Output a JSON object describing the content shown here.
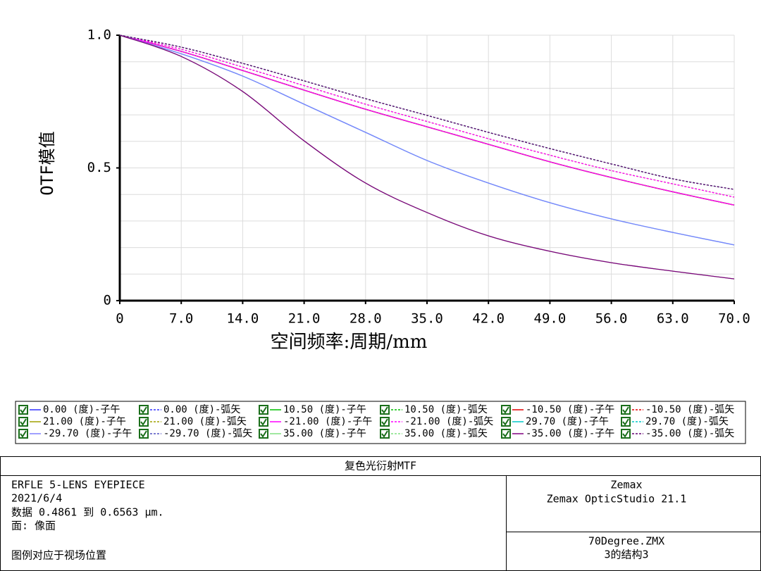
{
  "chart_data": {
    "type": "line",
    "x_label": "空间频率:周期/mm",
    "y_label": "OTF模值",
    "x": [
      0,
      7,
      14,
      21,
      28,
      35,
      42,
      49,
      56,
      63,
      70
    ],
    "xlim": [
      0,
      70
    ],
    "xticks": [
      0,
      {
        "value": 7,
        "label": "7.0"
      },
      {
        "value": 14,
        "label": "14.0"
      },
      {
        "value": 21,
        "label": "21.0"
      },
      {
        "value": 28,
        "label": "28.0"
      },
      {
        "value": 35,
        "label": "35.0"
      },
      {
        "value": 42,
        "label": "42.0"
      },
      {
        "value": 49,
        "label": "49.0"
      },
      {
        "value": 56,
        "label": "56.0"
      },
      {
        "value": 63,
        "label": "63.0"
      },
      {
        "value": 70,
        "label": "70.0"
      }
    ],
    "ylim": [
      0,
      1
    ],
    "yticks": [
      0,
      0.5,
      {
        "value": 1,
        "label": "1.0"
      }
    ],
    "y_minor_ticks": [
      0.1,
      0.2,
      0.3,
      0.4,
      0.6,
      0.7,
      0.8,
      0.9
    ],
    "grid": true,
    "series": [
      {
        "name": "0.00 (度)-子午",
        "color": "#3030ff",
        "style": "solid",
        "values": [
          1,
          0.939,
          0.867,
          0.793,
          0.721,
          0.655,
          0.589,
          0.523,
          0.464,
          0.41,
          0.36
        ]
      },
      {
        "name": "0.00 (度)-弧矢",
        "color": "#3030ff",
        "style": "dashed",
        "values": [
          1,
          0.939,
          0.867,
          0.793,
          0.721,
          0.655,
          0.589,
          0.523,
          0.464,
          0.41,
          0.36
        ]
      },
      {
        "name": "10.50 (度)-子午",
        "color": "#00c000",
        "style": "solid",
        "values": [
          1,
          0.939,
          0.867,
          0.793,
          0.721,
          0.655,
          0.589,
          0.523,
          0.464,
          0.41,
          0.36
        ]
      },
      {
        "name": "10.50 (度)-弧矢",
        "color": "#00c000",
        "style": "dashed",
        "values": [
          1,
          0.939,
          0.867,
          0.793,
          0.721,
          0.655,
          0.589,
          0.523,
          0.464,
          0.41,
          0.36
        ]
      },
      {
        "name": "-10.50 (度)-子午",
        "color": "#e00000",
        "style": "solid",
        "values": [
          1,
          0.939,
          0.867,
          0.793,
          0.721,
          0.655,
          0.589,
          0.523,
          0.464,
          0.41,
          0.36
        ]
      },
      {
        "name": "-10.50 (度)-弧矢",
        "color": "#e00000",
        "style": "dashed",
        "values": [
          1,
          0.939,
          0.867,
          0.793,
          0.721,
          0.655,
          0.589,
          0.523,
          0.464,
          0.41,
          0.36
        ]
      },
      {
        "name": "21.00 (度)-子午",
        "color": "#a0a000",
        "style": "solid",
        "values": [
          1,
          0.939,
          0.867,
          0.793,
          0.721,
          0.655,
          0.589,
          0.523,
          0.464,
          0.41,
          0.36
        ]
      },
      {
        "name": "21.00 (度)-弧矢",
        "color": "#a0a000",
        "style": "dashed",
        "values": [
          1,
          0.947,
          0.88,
          0.81,
          0.74,
          0.675,
          0.61,
          0.548,
          0.49,
          0.44,
          0.39
        ]
      },
      {
        "name": "-21.00 (度)-子午",
        "color": "#ff00ff",
        "style": "solid",
        "values": [
          1,
          0.939,
          0.867,
          0.793,
          0.721,
          0.655,
          0.589,
          0.523,
          0.464,
          0.41,
          0.36
        ]
      },
      {
        "name": "-21.00 (度)-弧矢",
        "color": "#ff00ff",
        "style": "dashed",
        "values": [
          1,
          0.947,
          0.88,
          0.81,
          0.74,
          0.675,
          0.61,
          0.548,
          0.49,
          0.44,
          0.39
        ]
      },
      {
        "name": "29.70 (度)-子午",
        "color": "#00c8c8",
        "style": "solid",
        "values": [
          1,
          0.93,
          0.846,
          0.74,
          0.634,
          0.528,
          0.443,
          0.369,
          0.308,
          0.257,
          0.21
        ]
      },
      {
        "name": "29.70 (度)-弧矢",
        "color": "#00c8c8",
        "style": "dashed",
        "values": [
          1,
          0.955,
          0.894,
          0.828,
          0.761,
          0.698,
          0.634,
          0.573,
          0.515,
          0.459,
          0.419
        ]
      },
      {
        "name": "-29.70 (度)-子午",
        "color": "#8080ff",
        "style": "solid",
        "values": [
          1,
          0.93,
          0.846,
          0.74,
          0.634,
          0.528,
          0.443,
          0.369,
          0.308,
          0.257,
          0.21
        ]
      },
      {
        "name": "-29.70 (度)-弧矢",
        "color": "#5050c0",
        "style": "dashed",
        "values": [
          1,
          0.955,
          0.894,
          0.828,
          0.761,
          0.698,
          0.634,
          0.573,
          0.515,
          0.459,
          0.419
        ]
      },
      {
        "name": "35.00 (度)-子午",
        "color": "#80e080",
        "style": "solid",
        "values": [
          1,
          0.92,
          0.788,
          0.602,
          0.443,
          0.332,
          0.244,
          0.186,
          0.143,
          0.111,
          0.082
        ]
      },
      {
        "name": "35.00 (度)-弧矢",
        "color": "#80e080",
        "style": "dashed",
        "values": [
          1,
          0.955,
          0.894,
          0.828,
          0.761,
          0.698,
          0.634,
          0.573,
          0.515,
          0.459,
          0.419
        ]
      },
      {
        "name": "-35.00 (度)-子午",
        "color": "#800080",
        "style": "solid",
        "values": [
          1,
          0.92,
          0.788,
          0.602,
          0.443,
          0.332,
          0.244,
          0.186,
          0.143,
          0.111,
          0.082
        ]
      },
      {
        "name": "-35.00 (度)-弧矢",
        "color": "#600070",
        "style": "dashed",
        "values": [
          1,
          0.955,
          0.894,
          0.828,
          0.761,
          0.698,
          0.634,
          0.573,
          0.515,
          0.459,
          0.419
        ]
      }
    ]
  },
  "footer": {
    "title": "复色光衍射MTF",
    "info": [
      "ERFLE 5-LENS EYEPIECE",
      "2021/6/4",
      "数据 0.4861 到 0.6563 µm.",
      "面: 像面"
    ],
    "note": "图例对应于视场位置",
    "company": [
      "Zemax",
      "Zemax OpticStudio 21.1"
    ],
    "file": [
      "70Degree.ZMX",
      "3的结构3"
    ]
  }
}
